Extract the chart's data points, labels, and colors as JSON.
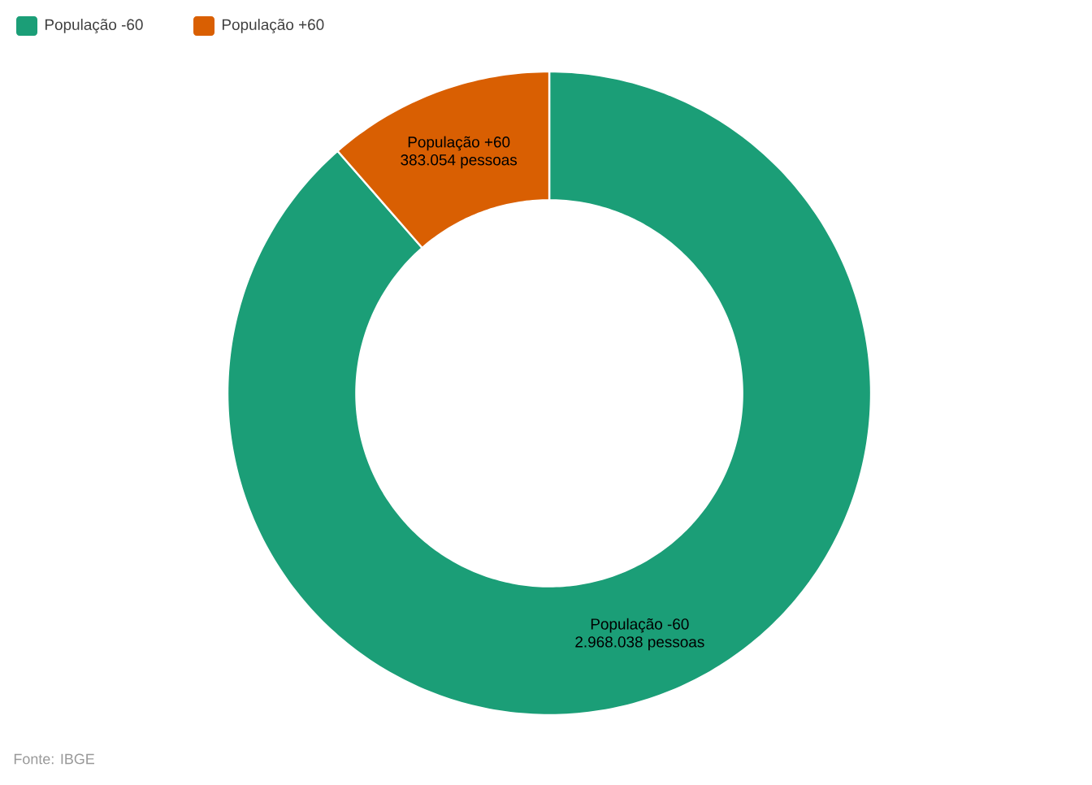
{
  "chart_data": {
    "type": "donut",
    "categories": [
      "População -60",
      "População +60"
    ],
    "values": [
      2968038,
      383054
    ],
    "value_labels": [
      "2.968.038 pessoas",
      "383.054 pessoas"
    ],
    "colors": [
      "#1b9e77",
      "#d95f02"
    ],
    "legend": "top left",
    "annotations": [
      "Fonte: IBGE"
    ]
  }
}
